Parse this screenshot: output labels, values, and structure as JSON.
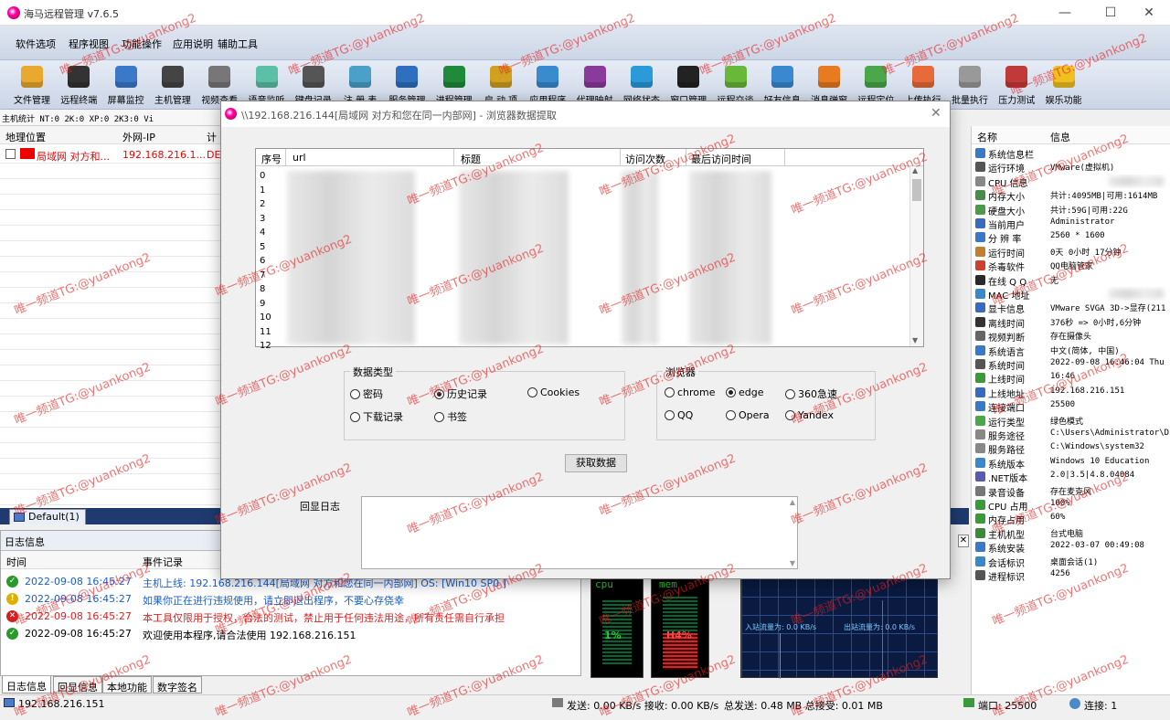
{
  "app": {
    "title": "海马远程管理 v7.6.5"
  },
  "menu": [
    "软件选项",
    "程序视图",
    "功能操作",
    "应用说明",
    "辅助工具"
  ],
  "toolbar": [
    {
      "label": "文件管理",
      "icon": "folder-icon",
      "color": "#e8a92e"
    },
    {
      "label": "远程终端",
      "icon": "terminal-icon",
      "color": "#333333"
    },
    {
      "label": "屏幕监控",
      "icon": "monitor-icon",
      "color": "#3a78c8"
    },
    {
      "label": "主机管理",
      "icon": "server-icon",
      "color": "#444444"
    },
    {
      "label": "视频查看",
      "icon": "camera-icon",
      "color": "#777777"
    },
    {
      "label": "语音监听",
      "icon": "microphone-icon",
      "color": "#5cc0a8"
    },
    {
      "label": "键盘记录",
      "icon": "keyboard-icon",
      "color": "#555555"
    },
    {
      "label": "注 册 表",
      "icon": "registry-icon",
      "color": "#4aa0c8"
    },
    {
      "label": "服务管理",
      "icon": "services-icon",
      "color": "#2e6fc0"
    },
    {
      "label": "进程管理",
      "icon": "process-icon",
      "color": "#1e8a3a"
    },
    {
      "label": "启 动 项",
      "icon": "startup-icon",
      "color": "#d0a020"
    },
    {
      "label": "应用程序",
      "icon": "applications-icon",
      "color": "#3a8ad0"
    },
    {
      "label": "代理映射",
      "icon": "proxy-icon",
      "color": "#8a3a9a"
    },
    {
      "label": "网络状态",
      "icon": "wifi-icon",
      "color": "#2a9ad8"
    },
    {
      "label": "窗口管理",
      "icon": "window-icon",
      "color": "#222222"
    },
    {
      "label": "远程交谈",
      "icon": "chat-icon",
      "color": "#6ab83a"
    },
    {
      "label": "好友信息",
      "icon": "contacts-icon",
      "color": "#3a88d0"
    },
    {
      "label": "消息弹窗",
      "icon": "message-icon",
      "color": "#e87a20"
    },
    {
      "label": "远程定位",
      "icon": "map-pin-icon",
      "color": "#4aa84a"
    },
    {
      "label": "上传执行",
      "icon": "upload-icon",
      "color": "#e86a3a"
    },
    {
      "label": "批量执行",
      "icon": "batch-icon",
      "color": "#999999"
    },
    {
      "label": "压力测试",
      "icon": "stress-test-icon",
      "color": "#c03a3a"
    },
    {
      "label": "娱乐功能",
      "icon": "smiley-icon",
      "color": "#f0c020"
    }
  ],
  "stats": "主机统计 NT:0    2K:0    XP:0    2K3:0    Vi",
  "hostlist": {
    "headers": [
      "地理位置",
      "外网-IP",
      "计"
    ],
    "row": {
      "location": "局域网 对方和...",
      "ip": "192.168.216.1...",
      "extra": "DE"
    }
  },
  "group_tab": "Default(1)",
  "log": {
    "title": "日志信息",
    "headers": [
      "时间",
      "事件记录"
    ],
    "rows": [
      {
        "type": "ok",
        "time": "2022-09-08 16:45:27",
        "event": "主机上线: 192.168.216.144[局域网 对方和您在同一内部网]   OS: [Win10 SP0 ]",
        "color": "#1a5fd0"
      },
      {
        "type": "warn",
        "time": "2022-09-08 16:45:27",
        "event": "如果你正在进行违规使用，请立即退出程序，不要心存侥幸",
        "color": "#1a5fd0"
      },
      {
        "type": "error",
        "time": "2022-09-08 16:45:27",
        "event": "本工具仅限用于授权，合法的测试，禁止用于任何违法用途，所有责任需自行承担",
        "color": "#e02020"
      },
      {
        "type": "ok",
        "time": "2022-09-08 16:45:27",
        "event": "欢迎使用本程序,请合法使用    192.168.216.151",
        "color": "#000000"
      }
    ]
  },
  "bottom_tabs": [
    "日志信息",
    "回显信息",
    "本地功能",
    "数字签名"
  ],
  "monitors": {
    "cpu_label": "cpu",
    "mem_label": "mem",
    "cpu_value": "1%",
    "mem_value": "H4%",
    "in_speed": "入站流量为: 0.0 KB/s",
    "out_speed": "出站流量为: 0.0 KB/s"
  },
  "statusbar": {
    "host": "192.168.216.151",
    "traffic": "发送: 0.00 KB/s 接收: 0.00 KB/s",
    "totals": "总发送: 0.48 MB 总接受: 0.01 MB",
    "port": "端口: 25500",
    "connections": "连接: 1"
  },
  "info": {
    "headers": [
      "名称",
      "信息"
    ],
    "rows": [
      {
        "name": "系统信息栏",
        "value": "",
        "color": "#3a78c8"
      },
      {
        "name": "运行环境",
        "value": "VMware(虚拟机)",
        "color": "#555555"
      },
      {
        "name": "CPU 信息",
        "value": "",
        "color": "#888888"
      },
      {
        "name": "内存大小",
        "value": "共计:4095MB|可用:1614MB",
        "color": "#4a8a4a"
      },
      {
        "name": "硬盘大小",
        "value": "共计:59G|可用:22G",
        "color": "#4a9a4a"
      },
      {
        "name": "当前用户",
        "value": "Administrator",
        "color": "#3a6ac0"
      },
      {
        "name": "分 辨 率",
        "value": "2560 * 1600",
        "color": "#3a78c8"
      },
      {
        "name": "运行时间",
        "value": "0天 0小时 17分钟",
        "color": "#c08030"
      },
      {
        "name": "杀毒软件",
        "value": "QQ电脑管家",
        "color": "#d04030"
      },
      {
        "name": "在线 Q Q",
        "value": "无",
        "color": "#2a2a2a"
      },
      {
        "name": "MAC 地址",
        "value": "",
        "color": "#3a88c8"
      },
      {
        "name": "显卡信息",
        "value": "VMware SVGA 3D->显存(211",
        "color": "#3a6ac0"
      },
      {
        "name": "离线时间",
        "value": "376秒 => 0小时,6分钟",
        "color": "#333333"
      },
      {
        "name": "视频判断",
        "value": "存在摄像头",
        "color": "#666666"
      },
      {
        "name": "系统语言",
        "value": "中文(简体, 中国)",
        "color": "#3a78c8"
      },
      {
        "name": "系统时间",
        "value": "2022-09-08 16:46:04 Thu",
        "color": "#555555"
      },
      {
        "name": "上线时间",
        "value": "16:46",
        "color": "#3a9a3a"
      },
      {
        "name": "上线地址",
        "value": "192.168.216.151",
        "color": "#3a6ac0"
      },
      {
        "name": "连接端口",
        "value": "25500",
        "color": "#3a78c8"
      },
      {
        "name": "运行类型",
        "value": "绿色模式",
        "color": "#4aa84a"
      },
      {
        "name": "服务途径",
        "value": "C:\\Users\\Administrator\\D",
        "color": "#888888"
      },
      {
        "name": "服务路径",
        "value": "C:\\Windows\\system32",
        "color": "#888888"
      },
      {
        "name": "系统版本",
        "value": "Windows 10 Education",
        "color": "#3a88c8"
      },
      {
        "name": ".NET版本",
        "value": "2.0|3.5|4.8.04084",
        "color": "#5a5ab0"
      },
      {
        "name": "录音设备",
        "value": "存在麦克风",
        "color": "#777777"
      },
      {
        "name": "CPU 占用",
        "value": "100%",
        "color": "#3a9a3a"
      },
      {
        "name": "内存占用",
        "value": "60%",
        "color": "#3a9a3a"
      },
      {
        "name": "主机机型",
        "value": "台式电脑",
        "color": "#3a8a3a"
      },
      {
        "name": "系统安装",
        "value": "2022-03-07 00:49:08",
        "color": "#3a78c8"
      },
      {
        "name": "会话标识",
        "value": "桌面会话(1)",
        "color": "#3a88c8"
      },
      {
        "name": "进程标识",
        "value": "4256",
        "color": "#555555"
      }
    ]
  },
  "dialog": {
    "title": "\\\\192.168.216.144[局域网 对方和您在同一内部网] - 浏览器数据提取",
    "table_headers": [
      "序号",
      "url",
      "标题",
      "访问次数",
      "最后访问时间"
    ],
    "row_numbers": [
      "0",
      "1",
      "2",
      "3",
      "4",
      "5",
      "6",
      "7",
      "8",
      "9",
      "10",
      "11",
      "12"
    ],
    "data_type": {
      "title": "数据类型",
      "options": [
        "密码",
        "历史记录",
        "Cookies",
        "下载记录",
        "书签"
      ],
      "selected": "历史记录"
    },
    "browser": {
      "title": "浏览器",
      "options": [
        "chrome",
        "edge",
        "360急速",
        "QQ",
        "Opera",
        "Yandex"
      ],
      "selected": "edge"
    },
    "fetch_button": "获取数据",
    "log_label": "回显日志"
  },
  "watermark": "唯一频道TG:@yuankong2"
}
